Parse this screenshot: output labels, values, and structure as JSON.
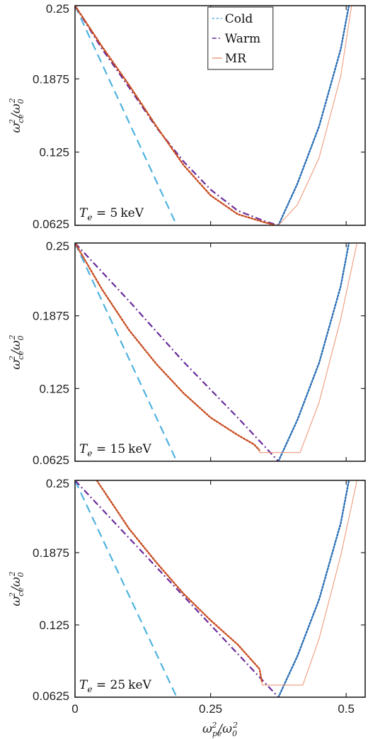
{
  "chart_data": [
    {
      "type": "line",
      "annotation": "T_e = 5 keV",
      "xlim": [
        0,
        0.535
      ],
      "ylim": [
        0.0625,
        0.25
      ],
      "x_ticks": [
        "0",
        "0.25",
        "0.5"
      ],
      "y_ticks": [
        "0.0625",
        "0.125",
        "0.1875",
        "0.25"
      ],
      "y_tick_values": [
        0.0625,
        0.125,
        0.1875,
        0.25
      ],
      "x_tick_values": [
        0,
        0.25,
        0.5
      ],
      "legend": {
        "placement": "top-center",
        "entries": [
          "Cold",
          "Warm",
          "MR"
        ]
      },
      "series": [
        {
          "name": "Cold",
          "style": "dashed",
          "color": "#4fb3e0",
          "x": [
            0,
            0.1875
          ],
          "y": [
            0.25,
            0.0625
          ]
        },
        {
          "name": "Cold",
          "style": "dotted",
          "color": "#2b6fb5",
          "x": [
            0.375,
            0.41,
            0.45,
            0.49,
            0.505
          ],
          "y": [
            0.0625,
            0.098,
            0.147,
            0.213,
            0.25
          ]
        },
        {
          "name": "Warm",
          "style": "dashdot",
          "color": "#6a2a9a",
          "x": [
            0,
            0.05,
            0.1,
            0.15,
            0.2,
            0.25,
            0.3,
            0.35,
            0.375
          ],
          "y": [
            0.25,
            0.213,
            0.18,
            0.146,
            0.117,
            0.093,
            0.075,
            0.066,
            0.0625
          ]
        },
        {
          "name": "MR",
          "style": "dotted",
          "color": "#c84b1e",
          "x": [
            0,
            0.05,
            0.1,
            0.15,
            0.2,
            0.25,
            0.3,
            0.35,
            0.37
          ],
          "y": [
            0.25,
            0.215,
            0.182,
            0.147,
            0.114,
            0.088,
            0.072,
            0.065,
            0.0625
          ]
        },
        {
          "name": "MR",
          "style": "solid-thin",
          "color": "#ef9a7a",
          "x": [
            0.375,
            0.41,
            0.45,
            0.49,
            0.51
          ],
          "y": [
            0.0625,
            0.08,
            0.12,
            0.19,
            0.25
          ]
        }
      ]
    },
    {
      "type": "line",
      "annotation": "T_e = 15 keV",
      "xlim": [
        0,
        0.535
      ],
      "ylim": [
        0.0625,
        0.25
      ],
      "x_ticks": [
        "0",
        "0.25",
        "0.5"
      ],
      "y_ticks": [
        "0.0625",
        "0.125",
        "0.1875",
        "0.25"
      ],
      "y_tick_values": [
        0.0625,
        0.125,
        0.1875,
        0.25
      ],
      "x_tick_values": [
        0,
        0.25,
        0.5
      ],
      "series": [
        {
          "name": "Cold",
          "style": "dashed",
          "color": "#4fb3e0",
          "x": [
            0,
            0.1875
          ],
          "y": [
            0.25,
            0.0625
          ]
        },
        {
          "name": "Cold",
          "style": "dotted",
          "color": "#2b6fb5",
          "x": [
            0.375,
            0.41,
            0.45,
            0.49,
            0.505
          ],
          "y": [
            0.0625,
            0.098,
            0.147,
            0.213,
            0.25
          ]
        },
        {
          "name": "Warm",
          "style": "dashdot",
          "color": "#6a2a9a",
          "x": [
            0,
            0.1,
            0.2,
            0.3,
            0.375
          ],
          "y": [
            0.25,
            0.2,
            0.148,
            0.1,
            0.0625
          ]
        },
        {
          "name": "MR",
          "style": "dotted",
          "color": "#c84b1e",
          "x": [
            0,
            0.05,
            0.1,
            0.15,
            0.2,
            0.25,
            0.3,
            0.33,
            0.34
          ],
          "y": [
            0.25,
            0.21,
            0.175,
            0.146,
            0.121,
            0.1,
            0.085,
            0.077,
            0.072
          ]
        },
        {
          "name": "MR",
          "style": "solid-thin",
          "color": "#ef9a7a",
          "x": [
            0.34,
            0.34,
            0.415,
            0.45,
            0.49,
            0.52
          ],
          "y": [
            0.072,
            0.07,
            0.07,
            0.113,
            0.185,
            0.25
          ]
        }
      ]
    },
    {
      "type": "line",
      "annotation": "T_e = 25 keV",
      "xlim": [
        0,
        0.535
      ],
      "ylim": [
        0.0625,
        0.25
      ],
      "x_ticks": [
        "0",
        "0.25",
        "0.5"
      ],
      "y_ticks": [
        "0.0625",
        "0.125",
        "0.1875",
        "0.25"
      ],
      "y_tick_values": [
        0.0625,
        0.125,
        0.1875,
        0.25
      ],
      "x_tick_values": [
        0,
        0.25,
        0.5
      ],
      "xlabel": "ω²pe/ω²0",
      "series": [
        {
          "name": "Cold",
          "style": "dashed",
          "color": "#4fb3e0",
          "x": [
            0,
            0.1875
          ],
          "y": [
            0.25,
            0.0625
          ]
        },
        {
          "name": "Cold",
          "style": "dotted",
          "color": "#2b6fb5",
          "x": [
            0.375,
            0.41,
            0.45,
            0.49,
            0.505
          ],
          "y": [
            0.0625,
            0.098,
            0.147,
            0.213,
            0.25
          ]
        },
        {
          "name": "Warm",
          "style": "dashdot",
          "color": "#6a2a9a",
          "x": [
            0,
            0.1,
            0.2,
            0.3,
            0.375
          ],
          "y": [
            0.25,
            0.2,
            0.15,
            0.1,
            0.0625
          ]
        },
        {
          "name": "MR",
          "style": "dotted",
          "color": "#c84b1e",
          "x": [
            0.04,
            0.1,
            0.15,
            0.2,
            0.25,
            0.3,
            0.34,
            0.345
          ],
          "y": [
            0.25,
            0.208,
            0.179,
            0.152,
            0.129,
            0.108,
            0.087,
            0.075
          ]
        },
        {
          "name": "MR",
          "style": "solid-thin",
          "color": "#ef9a7a",
          "x": [
            0.345,
            0.345,
            0.42,
            0.45,
            0.49,
            0.52
          ],
          "y": [
            0.075,
            0.073,
            0.073,
            0.113,
            0.185,
            0.25
          ]
        }
      ]
    }
  ]
}
